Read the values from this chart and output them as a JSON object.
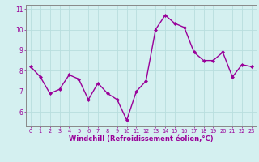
{
  "x": [
    0,
    1,
    2,
    3,
    4,
    5,
    6,
    7,
    8,
    9,
    10,
    11,
    12,
    13,
    14,
    15,
    16,
    17,
    18,
    19,
    20,
    21,
    22,
    23
  ],
  "y": [
    8.2,
    7.7,
    6.9,
    7.1,
    7.8,
    7.6,
    6.6,
    7.4,
    6.9,
    6.6,
    5.6,
    7.0,
    7.5,
    10.0,
    10.7,
    10.3,
    10.1,
    8.9,
    8.5,
    8.5,
    8.9,
    7.7,
    8.3,
    8.2
  ],
  "line_color": "#990099",
  "marker": "D",
  "marker_size": 2.0,
  "linewidth": 1.0,
  "xlabel": "Windchill (Refroidissement éolien,°C)",
  "xlabel_fontsize": 6.0,
  "bg_color": "#d4f0f0",
  "grid_color": "#b8dede",
  "tick_color": "#990099",
  "spine_color": "#888888",
  "xlim": [
    -0.5,
    23.5
  ],
  "ylim": [
    5.3,
    11.2
  ],
  "yticks": [
    6,
    7,
    8,
    9,
    10,
    11
  ],
  "xticks": [
    0,
    1,
    2,
    3,
    4,
    5,
    6,
    7,
    8,
    9,
    10,
    11,
    12,
    13,
    14,
    15,
    16,
    17,
    18,
    19,
    20,
    21,
    22,
    23
  ]
}
